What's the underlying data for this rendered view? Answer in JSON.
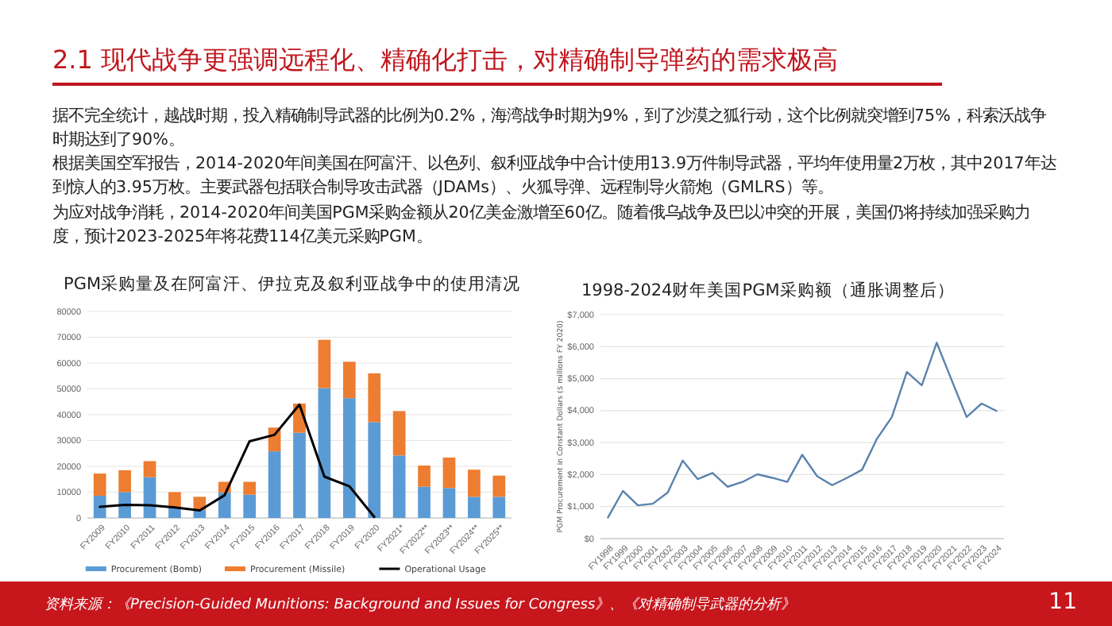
{
  "chart_data": [
    {
      "type": "other",
      "title": "2.1 现代战争更强调远程化、精确化打击，对精确制导弹药的需求极高",
      "annotations": [
        "据不完全统计，越战时期，投入精确制导武器的比例为0.2%，海湾战争时期为9%，到了沙漠之狐行动，这个比例就突增到75%，科索沃战争时期达到了90%。",
        "根据美国空军报告，2014-2020年间美国在阿富汗、以色列、叙利亚战争中合计使用13.9万件制导武器，平均年使用量2万枚，其中2017年达到惊人的3.95万枚。主要武器包括联合制导攻击武器（JDAMs）、火狐导弹、远程制导火箭炮（GMLRS）等。",
        "为应对战争消耗，2014-2020年间美国PGM采购金额从20亿美金激增至60亿。随着俄乌战争及巴以冲突的开展，美国仍将持续加强采购力度，预计2023-2025年将花费114亿美元采购PGM。",
        "资料来源：《Precision-Guided Munitions: Background and Issues for Congress》、《对精确制导武器的分析》",
        "11"
      ]
    },
    {
      "type": "bar",
      "title": "PGM采购量及在阿富汗、伊拉克及叙利亚战争中的使用清况",
      "stacked": true,
      "grid": "y",
      "legend": "bottom",
      "categories": [
        "FY2009",
        "FY2010",
        "FY2011",
        "FY2012",
        "FY2013",
        "FY2014",
        "FY2015",
        "FY2016",
        "FY2017",
        "FY2018",
        "FY2019",
        "FY2020",
        "FY2021*",
        "FY2022**",
        "FY2023**",
        "FY2024**",
        "FY2025**"
      ],
      "ylim": [
        0,
        80000
      ],
      "yticks": [
        0,
        10000,
        20000,
        30000,
        40000,
        50000,
        60000,
        70000,
        80000
      ],
      "series": [
        {
          "name": "Procurement (Bomb)",
          "type": "bar",
          "color": "#5b9bd5",
          "values": [
            8600,
            10000,
            15800,
            4000,
            3000,
            9800,
            9000,
            25800,
            33000,
            50300,
            46400,
            37100,
            24200,
            12100,
            11600,
            8200,
            8200
          ]
        },
        {
          "name": "Procurement (Missile)",
          "type": "bar",
          "color": "#ed7d31",
          "values": [
            8600,
            8500,
            6200,
            6000,
            5200,
            4200,
            5000,
            9200,
            11300,
            18700,
            14100,
            18900,
            17200,
            8200,
            11800,
            10500,
            8200
          ]
        },
        {
          "name": "Operational Usage",
          "type": "line",
          "color": "#000000",
          "values": [
            4300,
            5100,
            4900,
            4100,
            2900,
            8800,
            29700,
            32200,
            43900,
            16000,
            12300,
            400,
            null,
            null,
            null,
            null,
            null
          ]
        }
      ]
    },
    {
      "type": "line",
      "title": "1998-2024财年美国PGM采购额（通胀调整后）",
      "ylabel": "PGM Procurement in Constant Dollars ($ millions FY 2020)",
      "grid": "y",
      "categories": [
        "FY1998",
        "FY1999",
        "FY2000",
        "FY2001",
        "FY2002",
        "FY2003",
        "FY2004",
        "FY2005",
        "FY2006",
        "FY2007",
        "FY2008",
        "FY2009",
        "FY2010",
        "FY2011",
        "FY2012",
        "FY2013",
        "FY2014",
        "FY2015",
        "FY2016",
        "FY2017",
        "FY2018",
        "FY2019",
        "FY2020",
        "FY2021",
        "FY2022",
        "FY2023",
        "FY2024"
      ],
      "ylim": [
        0,
        7000
      ],
      "yticks": [
        {
          "value": 0,
          "label": "$0"
        },
        {
          "value": 1000,
          "label": "$1,000"
        },
        {
          "value": 2000,
          "label": "$2,000"
        },
        {
          "value": 3000,
          "label": "$3,000"
        },
        {
          "value": 4000,
          "label": "$4,000"
        },
        {
          "value": 5000,
          "label": "$5,000"
        },
        {
          "value": 6000,
          "label": "$6,000"
        },
        {
          "value": 7000,
          "label": "$7,000"
        }
      ],
      "series": [
        {
          "color": "#5a82ad",
          "values": [
            660,
            1490,
            1040,
            1090,
            1440,
            2440,
            1860,
            2050,
            1620,
            1770,
            2010,
            1900,
            1770,
            2620,
            1950,
            1670,
            1900,
            2150,
            3120,
            3800,
            5210,
            4790,
            6120,
            4950,
            3800,
            4220,
            3990
          ]
        }
      ]
    }
  ]
}
